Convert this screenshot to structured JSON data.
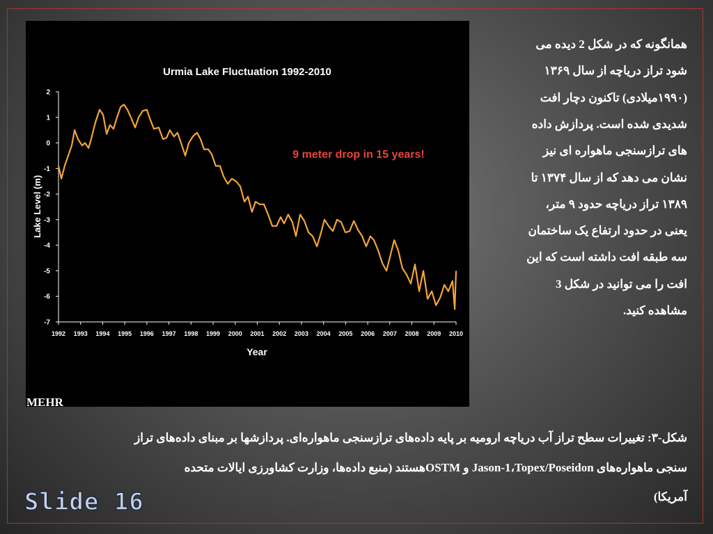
{
  "slide": {
    "paragraph": [
      "همانگونه که در شکل 2 دیده می",
      "شود تراز دریاچه از سال ۱۳۶۹",
      "(۱۹۹۰میلادی) تاکنون دچار افت",
      "شدیدی شده است. پردازش داده",
      "های ترازسنجی ماهواره ای نیز",
      "نشان می دهد که از سال ۱۳۷۴ تا",
      "۱۳۸۹ تراز دریاچه حدود ۹ متر،",
      "یعنی در حدود ارتفاع یک ساختمان",
      "سه طبقه افت داشته است که این",
      "افت را می توانید در شکل 3",
      "مشاهده کنید."
    ],
    "caption": [
      "شکل-۳: تغییرات سطح تراز آب دریاچه ارومیه بر پایه داده‌های ترازسنجی ماهواره‌ای. پردازشها بر مبنای داده‌های تراز",
      "سنجی ماهواره‌های Jason-1،Topex/Poseidon و OSTMهستند (منبع داده‌ها، وزارت کشاورزی ایالات متحده",
      "آمریکا)"
    ],
    "footer": "Slide 16"
  },
  "chart_data": {
    "type": "line",
    "title": "Urmia Lake Fluctuation 1992-2010",
    "annotation": "9 meter drop in 15 years!",
    "x_label": "Year",
    "y_label": "Lake Level (m)",
    "source": "MEHR",
    "color": "#f3a43a",
    "x": [
      1992.0,
      1992.13,
      1992.28,
      1992.44,
      1992.6,
      1992.73,
      1992.88,
      1993.07,
      1993.2,
      1993.36,
      1993.48,
      1993.67,
      1993.86,
      1994.02,
      1994.18,
      1994.33,
      1994.49,
      1994.65,
      1994.81,
      1994.96,
      1995.12,
      1995.28,
      1995.47,
      1995.63,
      1995.81,
      1996.0,
      1996.16,
      1996.32,
      1996.54,
      1996.73,
      1996.89,
      1997.04,
      1997.23,
      1997.39,
      1997.55,
      1997.74,
      1997.9,
      1998.08,
      1998.27,
      1998.43,
      1998.59,
      1998.78,
      1998.94,
      1999.12,
      1999.31,
      1999.47,
      1999.66,
      1999.85,
      2000.04,
      2000.23,
      2000.42,
      2000.58,
      2000.76,
      2000.92,
      2001.11,
      2001.3,
      2001.49,
      2001.68,
      2001.87,
      2002.06,
      2002.21,
      2002.4,
      2002.59,
      2002.75,
      2002.94,
      2003.13,
      2003.32,
      2003.51,
      2003.7,
      2003.89,
      2004.04,
      2004.23,
      2004.42,
      2004.61,
      2004.8,
      2004.99,
      2005.18,
      2005.37,
      2005.56,
      2005.75,
      2005.93,
      2006.12,
      2006.28,
      2006.47,
      2006.66,
      2006.85,
      2007.01,
      2007.2,
      2007.38,
      2007.57,
      2007.76,
      2007.95,
      2008.14,
      2008.33,
      2008.52,
      2008.71,
      2008.9,
      2009.09,
      2009.28,
      2009.47,
      2009.65,
      2009.84,
      2009.94,
      2010.0
    ],
    "values": [
      -0.9,
      -1.4,
      -0.9,
      -0.5,
      -0.1,
      0.5,
      0.15,
      -0.1,
      0.0,
      -0.2,
      0.15,
      0.8,
      1.3,
      1.1,
      0.35,
      0.7,
      0.55,
      1.0,
      1.4,
      1.5,
      1.3,
      1.0,
      0.6,
      1.0,
      1.25,
      1.3,
      0.9,
      0.55,
      0.6,
      0.15,
      0.2,
      0.5,
      0.25,
      0.4,
      0.0,
      -0.5,
      0.0,
      0.25,
      0.4,
      0.15,
      -0.25,
      -0.25,
      -0.45,
      -0.9,
      -0.9,
      -1.3,
      -1.6,
      -1.4,
      -1.5,
      -1.7,
      -2.3,
      -2.1,
      -2.7,
      -2.3,
      -2.4,
      -2.4,
      -2.8,
      -3.25,
      -3.25,
      -2.9,
      -3.15,
      -2.8,
      -3.1,
      -3.65,
      -2.8,
      -3.05,
      -3.5,
      -3.65,
      -4.05,
      -3.5,
      -3.0,
      -3.25,
      -3.45,
      -3.0,
      -3.1,
      -3.5,
      -3.45,
      -3.05,
      -3.4,
      -3.65,
      -4.05,
      -3.65,
      -3.8,
      -4.2,
      -4.7,
      -5.0,
      -4.45,
      -3.8,
      -4.2,
      -4.9,
      -5.15,
      -5.5,
      -4.75,
      -5.8,
      -5.0,
      -6.1,
      -5.8,
      -6.35,
      -6.05,
      -5.55,
      -5.8,
      -5.4,
      -6.5,
      -5.0
    ],
    "xlim": [
      1992,
      2010
    ],
    "xticks": [
      1992,
      1993,
      1994,
      1995,
      1996,
      1997,
      1998,
      1999,
      2000,
      2001,
      2002,
      2003,
      2004,
      2005,
      2006,
      2007,
      2008,
      2009,
      2010
    ],
    "ylim": [
      -7,
      2
    ],
    "yticks": [
      -7,
      -6,
      -5,
      -4,
      -3,
      -2,
      -1,
      0,
      1,
      2
    ]
  }
}
